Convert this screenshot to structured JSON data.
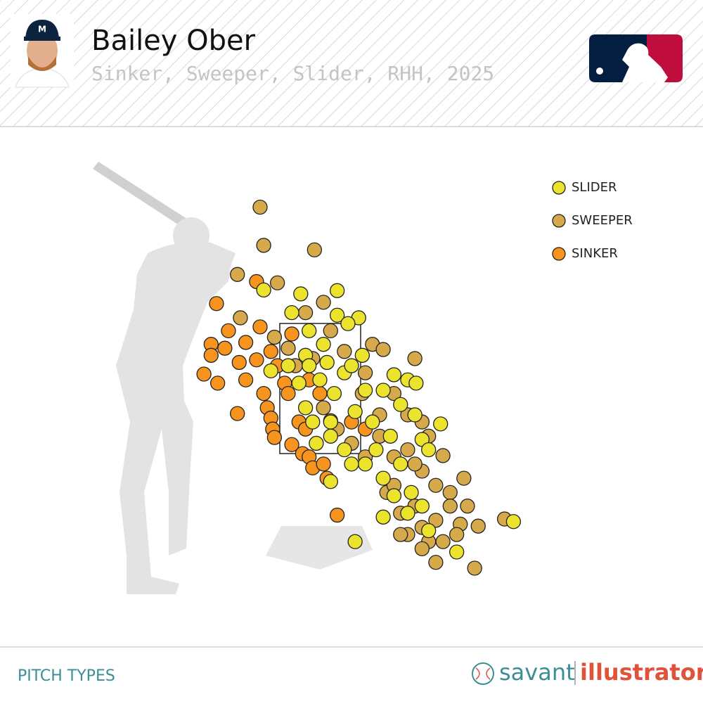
{
  "header": {
    "title": "Bailey Ober",
    "subtitle": "Sinker, Sweeper, Slider, RHH, 2025"
  },
  "chart_data": {
    "type": "scatter",
    "legend": "top-right",
    "series": [
      {
        "name": "SLIDER",
        "color": "#ebe32c",
        "x": [
          -0.94,
          -0.32,
          0.29,
          -0.47,
          0.29,
          0.65,
          -0.18,
          0.06,
          0.47,
          -0.82,
          -0.53,
          -0.24,
          0.12,
          0.41,
          1.24,
          1.47,
          1.61,
          0.76,
          1.06,
          1.35,
          2.02,
          1.71,
          1.82,
          1.35,
          1.06,
          0.76,
          0.53,
          0.41,
          0.18,
          -0.06,
          -0.24,
          0.24,
          0.59,
          0.88,
          1.18,
          1.53,
          1.71,
          1.06,
          1.24,
          0.59,
          2.29,
          3.24,
          1.82,
          1.47,
          0.18,
          -0.18,
          -0.35,
          0.0,
          0.53,
          0.71,
          0.18,
          -0.12,
          1.59,
          0.94
        ],
        "y": [
          4.05,
          3.99,
          4.04,
          3.7,
          3.66,
          3.62,
          3.42,
          3.21,
          3.53,
          2.8,
          2.88,
          3.04,
          2.93,
          2.77,
          2.74,
          2.66,
          2.61,
          2.5,
          2.5,
          2.28,
          1.98,
          1.74,
          1.58,
          1.36,
          1.14,
          1.36,
          1.36,
          1.58,
          1.79,
          1.68,
          2.23,
          2.45,
          2.17,
          2.01,
          1.79,
          0.92,
          0.71,
          0.54,
          0.87,
          0.16,
          0.0,
          0.47,
          0.33,
          0.6,
          1.09,
          2.88,
          2.61,
          2.66,
          2.88,
          3.04,
          2.01,
          2.01,
          2.12,
          1.58
        ]
      },
      {
        "name": "SWEEPER",
        "color": "#d6a94a",
        "x": [
          -1.0,
          -0.94,
          -0.09,
          -1.38,
          -0.71,
          -1.33,
          0.06,
          -0.24,
          -0.76,
          0.88,
          1.06,
          1.59,
          0.76,
          1.24,
          1.47,
          1.71,
          1.82,
          2.06,
          1.24,
          1.0,
          1.47,
          1.71,
          1.94,
          2.18,
          2.41,
          2.47,
          2.35,
          1.94,
          1.71,
          1.47,
          1.35,
          1.12,
          1.24,
          1.59,
          1.82,
          1.94,
          2.59,
          3.09,
          2.65,
          2.29,
          1.71,
          1.35,
          0.76,
          0.53,
          0.29,
          0.06,
          -0.41,
          -0.53,
          -0.12,
          0.18,
          0.41,
          0.71,
          1.0,
          1.59,
          2.18,
          2.06
        ],
        "y": [
          5.33,
          4.74,
          4.67,
          4.29,
          4.16,
          3.62,
          3.86,
          3.7,
          3.32,
          3.21,
          3.13,
          2.99,
          2.77,
          2.45,
          2.12,
          2.01,
          1.79,
          1.49,
          1.47,
          1.79,
          1.58,
          1.25,
          1.03,
          0.92,
          1.14,
          0.71,
          0.43,
          0.49,
          0.38,
          0.27,
          0.6,
          0.92,
          1.03,
          0.71,
          0.16,
          -0.16,
          -0.25,
          0.51,
          0.4,
          0.27,
          0.05,
          0.27,
          1.47,
          1.68,
          1.9,
          2.23,
          2.88,
          3.15,
          2.99,
          3.42,
          3.1,
          2.45,
          2.12,
          1.36,
          0.71,
          0.16
        ]
      },
      {
        "name": "SINKER",
        "color": "#f7941d",
        "x": [
          -1.73,
          -1.53,
          -1.82,
          -1.59,
          -1.24,
          -1.82,
          -1.35,
          -1.94,
          -1.71,
          -1.24,
          -1.06,
          -1.0,
          -0.94,
          -0.88,
          -0.82,
          -0.79,
          -0.76,
          -1.38,
          -0.47,
          -0.59,
          -0.47,
          -0.29,
          -0.18,
          -0.12,
          0.06,
          0.12,
          0.29,
          0.18,
          -0.35,
          -0.24,
          -0.53,
          -1.06,
          -0.71,
          -0.82,
          -0.18,
          0.0,
          0.76,
          0.53
        ],
        "y": [
          3.84,
          3.42,
          3.21,
          3.15,
          3.24,
          3.04,
          2.93,
          2.75,
          2.61,
          2.66,
          2.97,
          3.48,
          2.45,
          2.23,
          2.07,
          1.9,
          1.77,
          2.14,
          3.37,
          2.61,
          1.66,
          1.52,
          1.47,
          1.3,
          1.36,
          1.14,
          0.57,
          2.03,
          2.01,
          1.9,
          2.45,
          4.18,
          2.88,
          3.1,
          2.66,
          2.45,
          1.9,
          2.01
        ]
      }
    ]
  },
  "footer": {
    "label": "PITCH TYPES",
    "brand": "savant",
    "brand2": "illustrator"
  }
}
